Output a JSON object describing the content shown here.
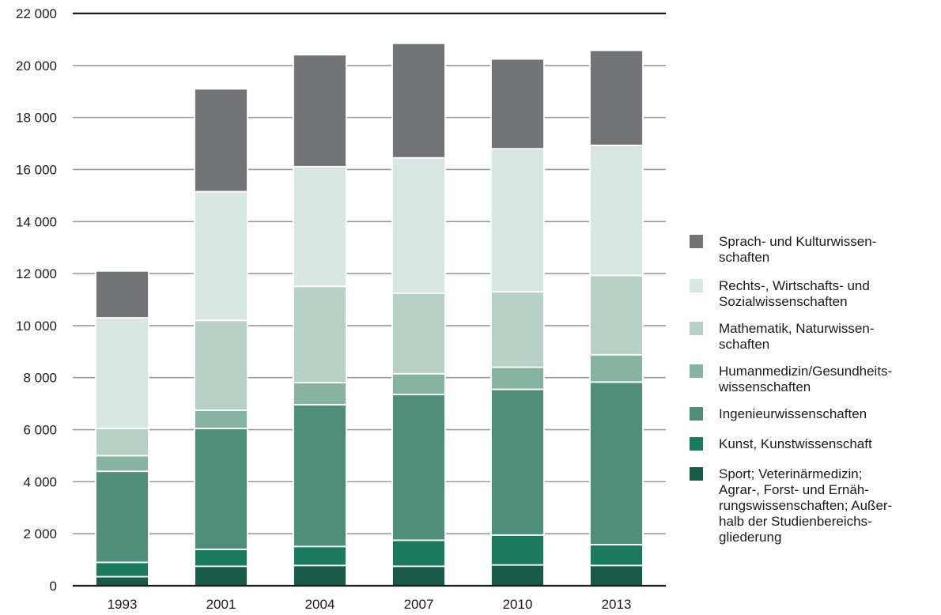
{
  "chart_data": {
    "type": "bar",
    "stacked": true,
    "categories": [
      "1993",
      "2001",
      "2004",
      "2007",
      "2010",
      "2013"
    ],
    "ylim": [
      0,
      22000
    ],
    "yticks": [
      0,
      2000,
      4000,
      6000,
      8000,
      10000,
      12000,
      14000,
      16000,
      18000,
      20000,
      22000
    ],
    "ytick_labels": [
      "0",
      "2 000",
      "4 000",
      "6 000",
      "8 000",
      "10 000",
      "12 000",
      "14 000",
      "16 000",
      "18 000",
      "20 000",
      "22 000"
    ],
    "grid": true,
    "legend_position": "right",
    "series": [
      {
        "name": "Sport; Veterinärmedizin;\nAgrar-, Forst- und Ernäh-\nrungswissenschaften; Außer-\nhalb der Studienbereichs-\ngliederung",
        "color": "#185a48",
        "values": [
          350,
          750,
          780,
          750,
          800,
          780
        ]
      },
      {
        "name": "Kunst, Kunstwissenschaft",
        "color": "#1b7a5e",
        "values": [
          550,
          650,
          730,
          1000,
          1150,
          800
        ]
      },
      {
        "name": "Ingenieurwissenschaften",
        "color": "#4f8f79",
        "values": [
          3500,
          4650,
          5450,
          5600,
          5600,
          6250
        ]
      },
      {
        "name": "Humanmedizin/Gesundheits-\nwissenschaften",
        "color": "#86b4a1",
        "values": [
          600,
          700,
          850,
          800,
          850,
          1050
        ]
      },
      {
        "name": "Mathematik, Naturwissen-\nschaften",
        "color": "#b8d1c7",
        "values": [
          1050,
          3450,
          3700,
          3100,
          2900,
          3050
        ]
      },
      {
        "name": "Rechts-, Wirtschafts- und\nSozialwissenschaften",
        "color": "#d7e6e1",
        "values": [
          4250,
          4950,
          4600,
          5200,
          5500,
          5000
        ]
      },
      {
        "name": "Sprach- und Kulturwissen-\nschaften",
        "color": "#717377",
        "values": [
          1800,
          3950,
          4300,
          4400,
          3450,
          3650
        ]
      }
    ]
  }
}
